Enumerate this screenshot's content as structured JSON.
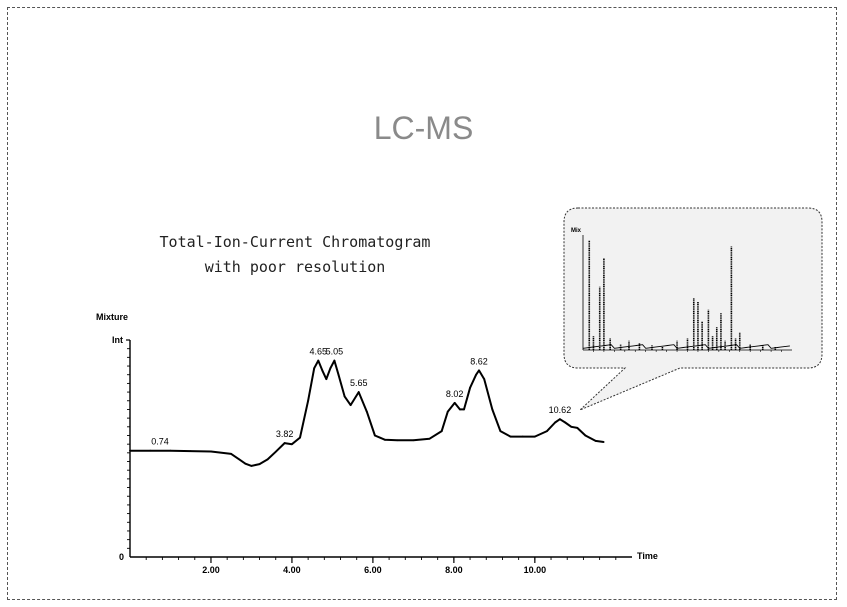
{
  "slide": {
    "title": "LC-MS",
    "subtitle_line1": "Total-Ion-Current Chromatogram",
    "subtitle_line2": "with poor resolution"
  },
  "chart_data": {
    "type": "line",
    "title": "Mixture",
    "xlabel": "Time",
    "ylabel": "Int",
    "xlim": [
      0,
      12.4
    ],
    "ylim": [
      0,
      100
    ],
    "x_ticks": [
      "2.00",
      "4.00",
      "6.00",
      "8.00",
      "10.00"
    ],
    "y_ticks": [
      "0"
    ],
    "grid": false,
    "series": [
      {
        "x": [
          0.0,
          0.5,
          1.0,
          1.5,
          2.0,
          2.5,
          2.7,
          2.85,
          3.0,
          3.2,
          3.4,
          3.6,
          3.82,
          4.0,
          4.2,
          4.4,
          4.55,
          4.65,
          4.75,
          4.85,
          4.95,
          5.05,
          5.15,
          5.3,
          5.45,
          5.65,
          5.85,
          6.05,
          6.3,
          6.6,
          7.0,
          7.4,
          7.7,
          7.85,
          8.02,
          8.15,
          8.25,
          8.4,
          8.55,
          8.62,
          8.75,
          8.95,
          9.15,
          9.4,
          9.7,
          10.0,
          10.3,
          10.5,
          10.62,
          10.75,
          10.9,
          11.05,
          11.25,
          11.5,
          11.7
        ],
        "y": [
          49,
          49,
          49,
          48.8,
          48.6,
          47.5,
          45,
          43,
          42,
          42.8,
          45,
          48.5,
          52.5,
          52,
          55,
          72,
          87,
          90.5,
          86,
          82,
          87,
          90.5,
          84,
          74,
          70,
          76,
          67,
          56,
          54,
          53.8,
          53.8,
          54.5,
          58,
          67,
          71,
          68,
          68,
          78,
          84,
          86,
          82,
          68,
          58,
          55.5,
          55.5,
          55.5,
          58,
          62,
          63.5,
          62,
          60,
          59.5,
          56,
          53.5,
          53
        ]
      }
    ],
    "peak_labels": [
      {
        "x": 0.74,
        "y": 49,
        "text": "0.74"
      },
      {
        "x": 3.82,
        "y": 52.5,
        "text": "3.82"
      },
      {
        "x": 4.65,
        "y": 90.5,
        "text": "4.65"
      },
      {
        "x": 5.05,
        "y": 90.5,
        "text": "5.05"
      },
      {
        "x": 5.65,
        "y": 76,
        "text": "5.65"
      },
      {
        "x": 8.02,
        "y": 71,
        "text": "8.02"
      },
      {
        "x": 8.62,
        "y": 86,
        "text": "8.62"
      },
      {
        "x": 10.62,
        "y": 63.5,
        "text": "10.62"
      }
    ],
    "inset": {
      "type": "bar",
      "description_title": "Mix",
      "xlim": [
        0,
        100
      ],
      "ylim": [
        0,
        100
      ],
      "values": [
        [
          3,
          95
        ],
        [
          5,
          12
        ],
        [
          8,
          55
        ],
        [
          10,
          80
        ],
        [
          13,
          10
        ],
        [
          18,
          5
        ],
        [
          22,
          8
        ],
        [
          27,
          6
        ],
        [
          33,
          4
        ],
        [
          38,
          3
        ],
        [
          45,
          8
        ],
        [
          50,
          10
        ],
        [
          53,
          45
        ],
        [
          55,
          42
        ],
        [
          57,
          25
        ],
        [
          60,
          35
        ],
        [
          62,
          12
        ],
        [
          64,
          20
        ],
        [
          66,
          32
        ],
        [
          68,
          8
        ],
        [
          71,
          90
        ],
        [
          73,
          10
        ],
        [
          75,
          15
        ],
        [
          80,
          5
        ],
        [
          86,
          4
        ],
        [
          92,
          3
        ]
      ]
    }
  }
}
